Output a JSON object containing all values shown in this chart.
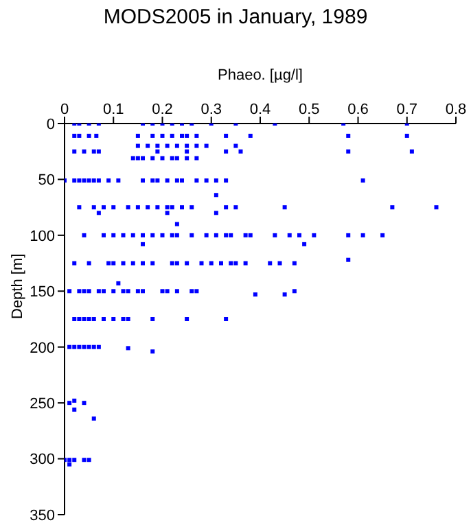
{
  "chart_data": {
    "type": "scatter",
    "title": "MODS2005 in January, 1989",
    "xlabel": "Phaeo. [µg/l]",
    "ylabel": "Depth [m]",
    "xlim": [
      0,
      0.8
    ],
    "xticks": [
      0,
      0.1,
      0.2,
      0.3,
      0.4,
      0.5,
      0.6,
      0.7,
      0.8
    ],
    "ylim": [
      350,
      0
    ],
    "yticks": [
      0,
      50,
      100,
      150,
      200,
      250,
      300,
      350
    ],
    "marker": "square",
    "color": "#0000ff",
    "x": [
      0.02,
      0.03,
      0.05,
      0.07,
      0.16,
      0.18,
      0.2,
      0.22,
      0.24,
      0.26,
      0.3,
      0.35,
      0.43,
      0.57,
      0.7,
      0.02,
      0.03,
      0.05,
      0.065,
      0.15,
      0.18,
      0.2,
      0.22,
      0.24,
      0.25,
      0.27,
      0.33,
      0.38,
      0.58,
      0.7,
      0.15,
      0.17,
      0.19,
      0.21,
      0.23,
      0.25,
      0.27,
      0.29,
      0.35,
      0.02,
      0.04,
      0.06,
      0.07,
      0.19,
      0.25,
      0.33,
      0.36,
      0.58,
      0.71,
      0.14,
      0.15,
      0.16,
      0.18,
      0.2,
      0.22,
      0.23,
      0.25,
      0.27,
      0,
      0.02,
      0.03,
      0.04,
      0.05,
      0.06,
      0.07,
      0.09,
      0.11,
      0.16,
      0.18,
      0.19,
      0.21,
      0.23,
      0.24,
      0.27,
      0.29,
      0.31,
      0.33,
      0.61,
      0.31,
      0.03,
      0.06,
      0.08,
      0.1,
      0.13,
      0.15,
      0.17,
      0.19,
      0.21,
      0.22,
      0.24,
      0.26,
      0.33,
      0.35,
      0.45,
      0.67,
      0.76,
      0.07,
      0.21,
      0.31,
      0.23,
      0.04,
      0.08,
      0.1,
      0.12,
      0.14,
      0.16,
      0.18,
      0.2,
      0.22,
      0.23,
      0.26,
      0.29,
      0.31,
      0.33,
      0.34,
      0.37,
      0.38,
      0.43,
      0.46,
      0.48,
      0.51,
      0.58,
      0.61,
      0.65,
      0.16,
      0.49,
      0.58,
      0.02,
      0.05,
      0.09,
      0.1,
      0.12,
      0.14,
      0.16,
      0.18,
      0.22,
      0.23,
      0.25,
      0.28,
      0.3,
      0.32,
      0.34,
      0.35,
      0.37,
      0.42,
      0.44,
      0.47,
      0.11,
      0.01,
      0.03,
      0.04,
      0.05,
      0.07,
      0.08,
      0.1,
      0.12,
      0.13,
      0.15,
      0.16,
      0.2,
      0.21,
      0.23,
      0.26,
      0.27,
      0.47,
      0.39,
      0.45,
      0.02,
      0.03,
      0.04,
      0.05,
      0.06,
      0.08,
      0.1,
      0.12,
      0.13,
      0.18,
      0.25,
      0.33,
      0.01,
      0.02,
      0.03,
      0.04,
      0.05,
      0.06,
      0.07,
      0.13,
      0.18,
      0.02,
      0.01,
      0.04,
      0.02,
      0.06,
      0,
      0.01,
      0.02,
      0.04,
      0.05,
      0.01
    ],
    "values": [
      0,
      0,
      0,
      0,
      0,
      0,
      0,
      0,
      0,
      0,
      0,
      0,
      0,
      0,
      0,
      11,
      11,
      11,
      11,
      11,
      11,
      11,
      11,
      11,
      11,
      11,
      11,
      11,
      11,
      11,
      20,
      20,
      20,
      20,
      20,
      20,
      20,
      20,
      20,
      25,
      25,
      25,
      25,
      25,
      25,
      25,
      25,
      25,
      25,
      31,
      31,
      31,
      31,
      31,
      31,
      31,
      31,
      31,
      51,
      51,
      51,
      51,
      51,
      51,
      51,
      51,
      51,
      51,
      51,
      51,
      51,
      51,
      51,
      51,
      51,
      51,
      51,
      51,
      64,
      75,
      75,
      75,
      75,
      75,
      75,
      75,
      75,
      75,
      75,
      75,
      75,
      75,
      75,
      75,
      75,
      75,
      80,
      80,
      80,
      90,
      100,
      100,
      100,
      100,
      100,
      100,
      100,
      100,
      100,
      100,
      100,
      100,
      100,
      100,
      100,
      100,
      100,
      100,
      100,
      100,
      100,
      100,
      100,
      100,
      108,
      108,
      122,
      125,
      125,
      125,
      125,
      125,
      125,
      125,
      125,
      125,
      125,
      125,
      125,
      125,
      125,
      125,
      125,
      125,
      125,
      125,
      125,
      143,
      150,
      150,
      150,
      150,
      150,
      150,
      150,
      150,
      150,
      150,
      150,
      150,
      150,
      150,
      150,
      150,
      150,
      153,
      153,
      175,
      175,
      175,
      175,
      175,
      175,
      175,
      175,
      175,
      175,
      175,
      175,
      200,
      200,
      200,
      200,
      200,
      200,
      200,
      201,
      204,
      248,
      250,
      250,
      256,
      264,
      301,
      301,
      301,
      301,
      301,
      305
    ]
  }
}
